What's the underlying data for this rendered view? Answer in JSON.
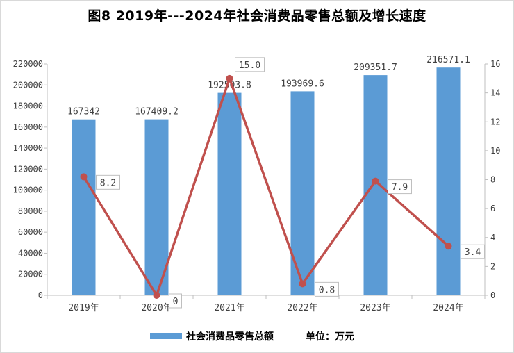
{
  "title": "图8  2019年---2024年社会消费品零售总额及增长速度",
  "legend_label": "社会消费品零售总额",
  "unit_label": "单位：万元",
  "colors": {
    "bar": "#5b9bd5",
    "line": "#c0504d",
    "grid": "#d9d9d9"
  },
  "chart_data": {
    "type": "bar",
    "categories": [
      "2019年",
      "2020年",
      "2021年",
      "2022年",
      "2023年",
      "2024年"
    ],
    "series": [
      {
        "name": "社会消费品零售总额",
        "type": "bar",
        "axis": "left",
        "values": [
          167342,
          167409.2,
          192503.8,
          193969.6,
          209351.7,
          216571.1
        ],
        "labels": [
          "167342",
          "167409.2",
          "192503.8",
          "193969.6",
          "209351.7",
          "216571.1"
        ]
      },
      {
        "type": "line",
        "axis": "right",
        "values": [
          8.2,
          0,
          15.0,
          0.8,
          7.9,
          3.4
        ],
        "labels": [
          "8.2",
          "0",
          "15.0",
          "0.8",
          "7.9",
          "3.4"
        ]
      }
    ],
    "y_left": {
      "min": 0,
      "max": 220000,
      "ticks": [
        0,
        20000,
        40000,
        60000,
        80000,
        100000,
        120000,
        140000,
        160000,
        180000,
        200000,
        220000
      ]
    },
    "y_right": {
      "min": 0,
      "max": 16,
      "ticks": [
        0,
        2,
        4,
        6,
        8,
        10,
        12,
        14,
        16
      ]
    },
    "grid": false,
    "legend_position": "bottom"
  }
}
